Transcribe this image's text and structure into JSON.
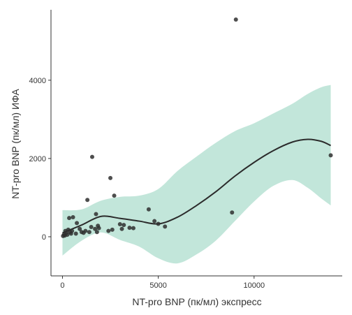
{
  "chart_data": {
    "type": "scatter",
    "xlabel": "NT-pro BNP (пк/мл) экспресс",
    "ylabel": "NT-pro BNP (пк/мл) ИФА",
    "xlim": [
      -600,
      14600
    ],
    "ylim": [
      -1000,
      5800
    ],
    "x_ticks": [
      0,
      5000,
      10000
    ],
    "x_tick_labels": [
      "0",
      "5000",
      "10000"
    ],
    "y_ticks": [
      0,
      2000,
      4000
    ],
    "y_tick_labels": [
      "0",
      "2000",
      "4000"
    ],
    "grid": false,
    "colors": {
      "points": "#2f2f2f",
      "smooth_line": "#2b2b2b",
      "band": "#a8dccb"
    },
    "points": [
      {
        "x": 30,
        "y": 20
      },
      {
        "x": 80,
        "y": 60
      },
      {
        "x": 120,
        "y": 30
      },
      {
        "x": 150,
        "y": 150
      },
      {
        "x": 200,
        "y": 100
      },
      {
        "x": 250,
        "y": 50
      },
      {
        "x": 300,
        "y": 180
      },
      {
        "x": 350,
        "y": 480
      },
      {
        "x": 400,
        "y": 120
      },
      {
        "x": 450,
        "y": 80
      },
      {
        "x": 500,
        "y": 150
      },
      {
        "x": 550,
        "y": 500
      },
      {
        "x": 700,
        "y": 80
      },
      {
        "x": 750,
        "y": 350
      },
      {
        "x": 900,
        "y": 200
      },
      {
        "x": 1000,
        "y": 120
      },
      {
        "x": 1100,
        "y": 100
      },
      {
        "x": 1200,
        "y": 150
      },
      {
        "x": 1300,
        "y": 940
      },
      {
        "x": 1400,
        "y": 120
      },
      {
        "x": 1500,
        "y": 250
      },
      {
        "x": 1550,
        "y": 2040
      },
      {
        "x": 1700,
        "y": 200
      },
      {
        "x": 1750,
        "y": 580
      },
      {
        "x": 1800,
        "y": 120
      },
      {
        "x": 1850,
        "y": 280
      },
      {
        "x": 1900,
        "y": 220
      },
      {
        "x": 2400,
        "y": 150
      },
      {
        "x": 2500,
        "y": 1500
      },
      {
        "x": 2600,
        "y": 180
      },
      {
        "x": 2700,
        "y": 1050
      },
      {
        "x": 3000,
        "y": 320
      },
      {
        "x": 3100,
        "y": 200
      },
      {
        "x": 3200,
        "y": 300
      },
      {
        "x": 3500,
        "y": 230
      },
      {
        "x": 3700,
        "y": 220
      },
      {
        "x": 4500,
        "y": 700
      },
      {
        "x": 4800,
        "y": 400
      },
      {
        "x": 5000,
        "y": 330
      },
      {
        "x": 5350,
        "y": 260
      },
      {
        "x": 8850,
        "y": 620
      },
      {
        "x": 9050,
        "y": 5550
      },
      {
        "x": 14000,
        "y": 2080
      }
    ],
    "smooth": {
      "x": [
        0,
        1000,
        2000,
        3000,
        4000,
        5000,
        6000,
        7000,
        8000,
        9000,
        10000,
        11000,
        12000,
        12800,
        13500,
        14000
      ],
      "y": [
        100,
        300,
        520,
        470,
        400,
        330,
        500,
        800,
        1150,
        1550,
        1900,
        2200,
        2420,
        2490,
        2440,
        2330
      ],
      "lower": [
        -480,
        -100,
        110,
        -80,
        -250,
        -550,
        -680,
        -450,
        -100,
        400,
        900,
        1300,
        1450,
        1250,
        980,
        800
      ],
      "upper": [
        680,
        700,
        920,
        1020,
        1050,
        1220,
        1680,
        2050,
        2400,
        2700,
        2900,
        3150,
        3400,
        3650,
        3820,
        3880
      ]
    }
  }
}
